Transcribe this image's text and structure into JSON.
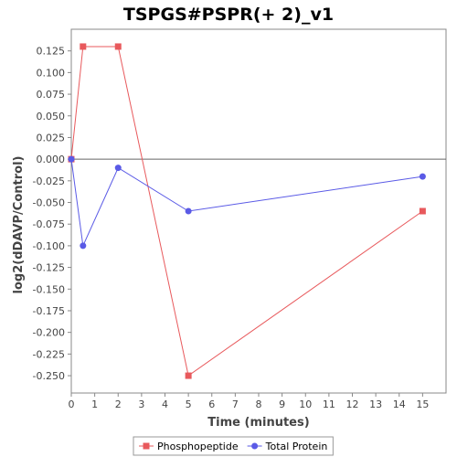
{
  "chart_data": {
    "type": "line",
    "title": "TSPGS#PSPR(+ 2)_v1",
    "xlabel": "Time (minutes)",
    "ylabel": "log2(dDAVP/Control)",
    "xlim": [
      0,
      16
    ],
    "ylim": [
      -0.27,
      0.15
    ],
    "xticks": [
      0,
      1,
      2,
      3,
      4,
      5,
      6,
      7,
      8,
      9,
      10,
      11,
      12,
      13,
      14,
      15
    ],
    "yticks": [
      0.125,
      0.1,
      0.075,
      0.05,
      0.025,
      0.0,
      -0.025,
      -0.05,
      -0.075,
      -0.1,
      -0.125,
      -0.15,
      -0.175,
      -0.2,
      -0.225,
      -0.25
    ],
    "ytick_labels": [
      "0.125",
      "0.100",
      "0.075",
      "0.050",
      "0.025",
      "0.000",
      "-0.025",
      "-0.050",
      "-0.075",
      "-0.100",
      "-0.125",
      "-0.150",
      "-0.175",
      "-0.200",
      "-0.225",
      "-0.250"
    ],
    "zero_line": true,
    "grid": false,
    "legend_position": "bottom",
    "series": [
      {
        "name": "Phosphopeptide",
        "color": "#e8595c",
        "marker": "square",
        "x": [
          0,
          0.5,
          2,
          5,
          15
        ],
        "y": [
          0.0,
          0.13,
          0.13,
          -0.25,
          -0.06
        ]
      },
      {
        "name": "Total Protein",
        "color": "#5a5ae6",
        "marker": "circle",
        "x": [
          0,
          0.5,
          2,
          5,
          15
        ],
        "y": [
          0.0,
          -0.1,
          -0.01,
          -0.06,
          -0.02
        ]
      }
    ]
  }
}
